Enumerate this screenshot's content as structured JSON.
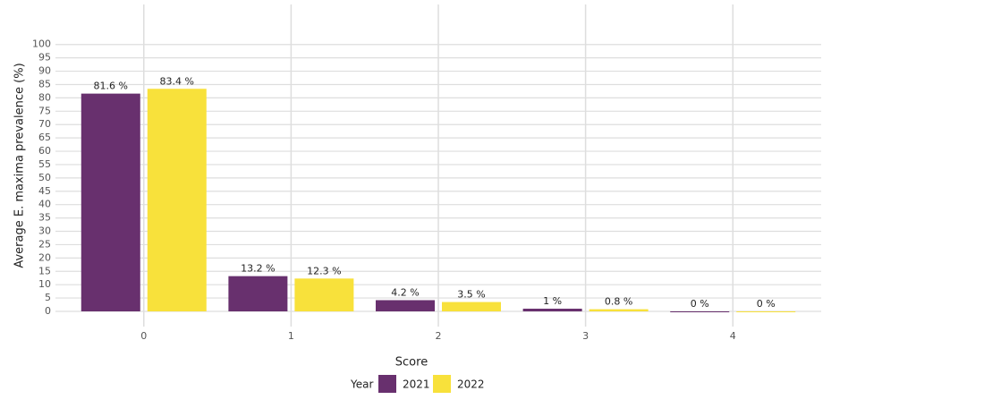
{
  "chart_data": {
    "type": "bar",
    "ylabel": "Average E. maxima prevalence (%)",
    "xlabel": "Score",
    "legend_title": "Year",
    "categories": [
      "0",
      "1",
      "2",
      "3",
      "4"
    ],
    "series": [
      {
        "name": "2021",
        "color": "#68306e",
        "values": [
          81.6,
          13.2,
          4.2,
          1,
          0
        ],
        "value_labels": [
          "81.6 %",
          "13.2 %",
          "4.2 %",
          "1 %",
          "0 %"
        ]
      },
      {
        "name": "2022",
        "color": "#f8e13b",
        "values": [
          83.4,
          12.3,
          3.5,
          0.8,
          0
        ],
        "value_labels": [
          "83.4 %",
          "12.3 %",
          "3.5 %",
          "0.8 %",
          "0 %"
        ]
      }
    ],
    "ylim": [
      -5.7,
      115
    ],
    "yticks": [
      0,
      5,
      10,
      15,
      20,
      25,
      30,
      35,
      40,
      45,
      50,
      55,
      60,
      65,
      70,
      75,
      80,
      85,
      90,
      95,
      100
    ],
    "grid": true,
    "legend": "bottom"
  }
}
